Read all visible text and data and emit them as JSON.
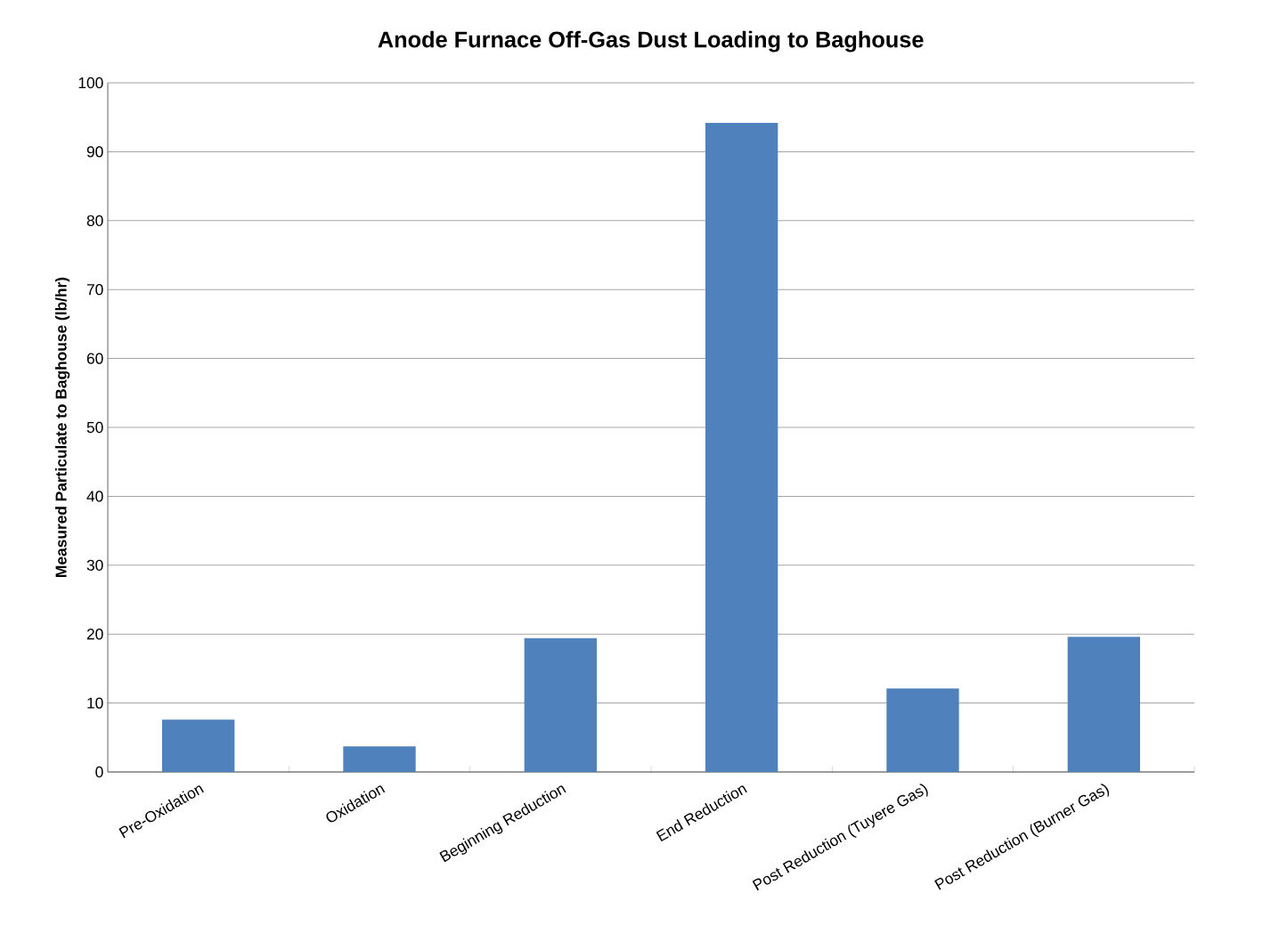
{
  "chart_data": {
    "type": "bar",
    "title": "Anode Furnace Off-Gas Dust Loading to Baghouse",
    "ylabel": "Measured Particulate to Baghouse (lb/hr)",
    "categories": [
      "Pre-Oxidation",
      "Oxidation",
      "Beginning Reduction",
      "End Reduction",
      "Post Reduction (Tuyere Gas)",
      "Post Reduction (Burner Gas)"
    ],
    "values": [
      7.6,
      3.7,
      19.4,
      94.2,
      12.1,
      19.6
    ],
    "color": "#4f81bd",
    "ylim": [
      0,
      100
    ],
    "yticks": [
      0,
      10,
      20,
      30,
      40,
      50,
      60,
      70,
      80,
      90,
      100
    ],
    "grid": "y"
  }
}
